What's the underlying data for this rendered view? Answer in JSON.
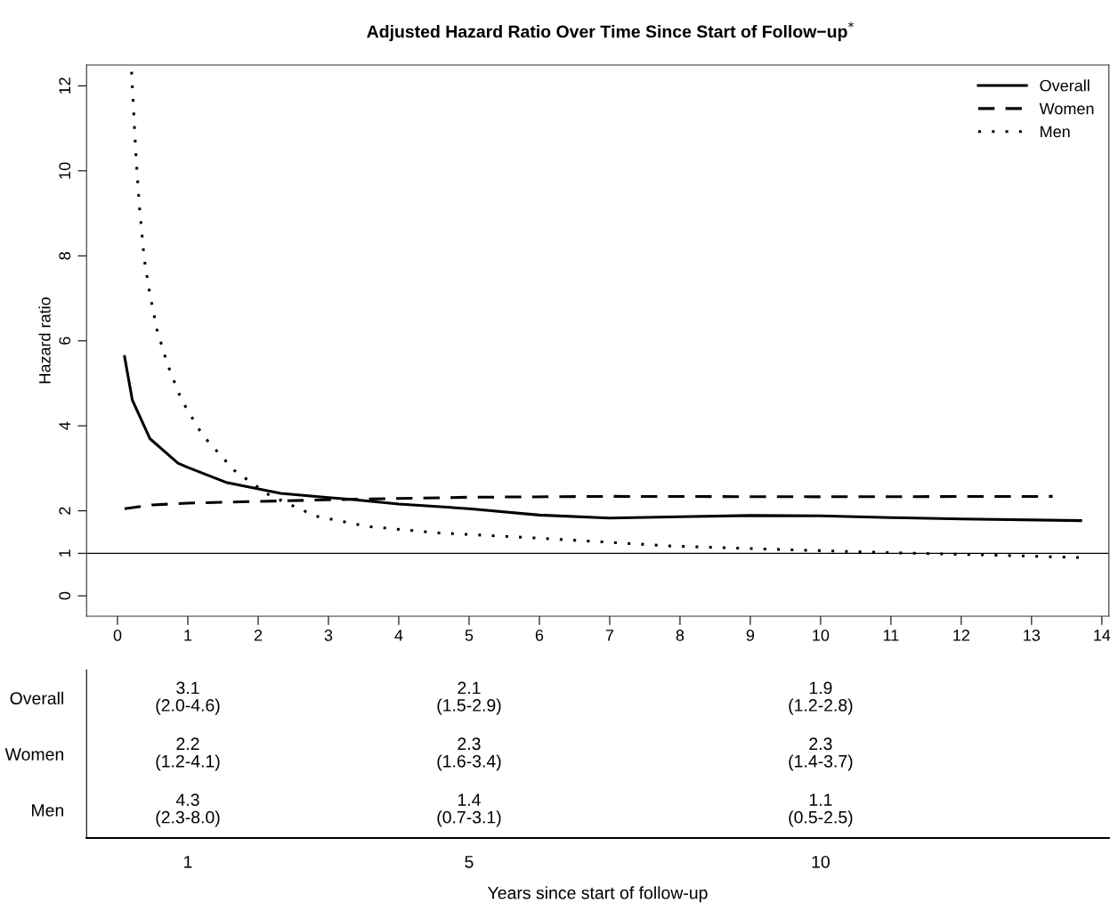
{
  "chart_data": [
    {
      "type": "line",
      "title": "Adjusted Hazard Ratio Over Time Since Start of Follow−up$^{*}$",
      "ylabel": "Hazard ratio",
      "xlim": [
        -0.44,
        14.1
      ],
      "xticks": [
        0,
        1,
        2,
        3,
        4,
        5,
        6,
        7,
        8,
        9,
        10,
        11,
        12,
        13,
        14
      ],
      "ylim": [
        -0.48,
        12.49
      ],
      "yticks": [
        0,
        1,
        2,
        4,
        6,
        8,
        10,
        12
      ],
      "legend": "top right",
      "grid": false,
      "marker": "none",
      "ref_lines": [
        {
          "axis": "y",
          "value": 1,
          "color": "#000000",
          "line_style": "solid"
        }
      ],
      "series": [
        {
          "name": "Overall",
          "color": "#000000",
          "line_style": "solid",
          "x": [
            0.1,
            0.21,
            0.46,
            0.86,
            1.0,
            1.56,
            2.32,
            3.0,
            3.32,
            4.0,
            5.0,
            6.0,
            7.0,
            8.0,
            9.0,
            10.0,
            11.0,
            12.0,
            13.7
          ],
          "values": [
            5.63,
            4.61,
            3.7,
            3.12,
            3.02,
            2.66,
            2.41,
            2.31,
            2.27,
            2.16,
            2.05,
            1.9,
            1.83,
            1.86,
            1.89,
            1.88,
            1.84,
            1.81,
            1.77
          ]
        },
        {
          "name": "Women",
          "color": "#000000",
          "line_style": "dashed",
          "x": [
            0.1,
            0.5,
            1.0,
            2.0,
            3.0,
            5.0,
            7.0,
            10.0,
            13.3
          ],
          "values": [
            2.05,
            2.14,
            2.18,
            2.22,
            2.26,
            2.32,
            2.34,
            2.33,
            2.34
          ]
        },
        {
          "name": "Men",
          "color": "#000000",
          "line_style": "dotted",
          "x": [
            0.2,
            0.26,
            0.31,
            0.38,
            0.46,
            0.56,
            0.71,
            0.91,
            1.21,
            1.66,
            2.16,
            2.81,
            3.56,
            4.57,
            5.96,
            7.89,
            9.82,
            11.1,
            12.4,
            13.7
          ],
          "values": [
            12.33,
            10.42,
            9.18,
            7.93,
            7.1,
            6.27,
            5.45,
            4.61,
            3.78,
            2.95,
            2.37,
            1.88,
            1.63,
            1.48,
            1.36,
            1.17,
            1.07,
            1.01,
            0.96,
            0.9
          ]
        }
      ]
    },
    {
      "type": "other",
      "xlabel": "Years since start of follow-up",
      "categories": [
        "1",
        "5",
        "10"
      ],
      "y_categories": [
        "Overall",
        "Women",
        "Men"
      ],
      "annotations": [
        {
          "text": "3.1\n(2.0-4.6)",
          "x": "1",
          "y": "Overall"
        },
        {
          "text": "2.1\n(1.5-2.9)",
          "x": "5",
          "y": "Overall"
        },
        {
          "text": "1.9\n(1.2-2.8)",
          "x": "10",
          "y": "Overall"
        },
        {
          "text": "2.2\n(1.2-4.1)",
          "x": "1",
          "y": "Women"
        },
        {
          "text": "2.3\n(1.6-3.4)",
          "x": "5",
          "y": "Women"
        },
        {
          "text": "2.3\n(1.4-3.7)",
          "x": "10",
          "y": "Women"
        },
        {
          "text": "4.3\n(2.3-8.0)",
          "x": "1",
          "y": "Men"
        },
        {
          "text": "1.4\n(0.7-3.1)",
          "x": "5",
          "y": "Men"
        },
        {
          "text": "1.1\n(0.5-2.5)",
          "x": "10",
          "y": "Men"
        }
      ]
    }
  ]
}
